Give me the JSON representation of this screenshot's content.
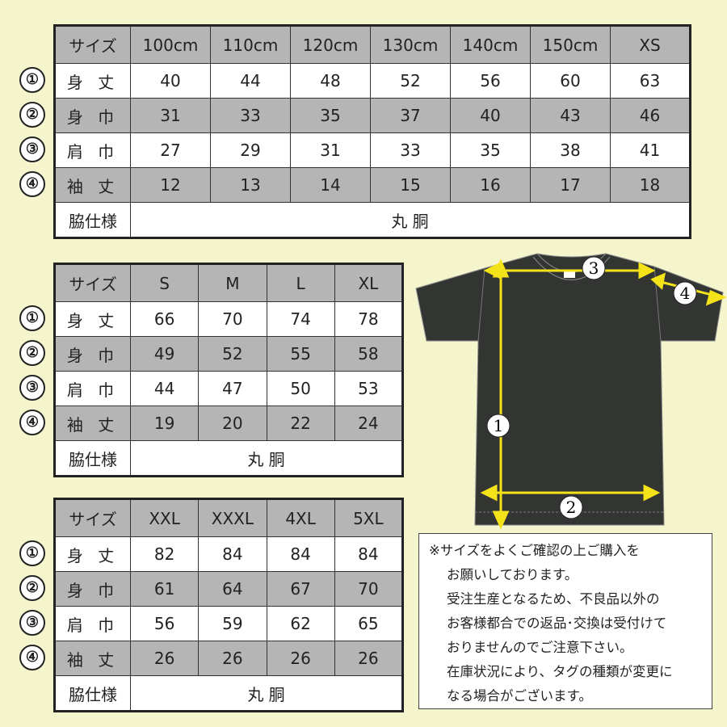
{
  "row_labels": {
    "size": "サイズ",
    "length": "身 丈",
    "width": "身 巾",
    "shoulder": "肩 巾",
    "sleeve": "袖 丈",
    "side": "脇仕様"
  },
  "markers": [
    "①",
    "②",
    "③",
    "④"
  ],
  "side_value": "丸 胴",
  "tables": [
    {
      "sizes": [
        "100cm",
        "110cm",
        "120cm",
        "130cm",
        "140cm",
        "150cm",
        "XS"
      ],
      "length": [
        "40",
        "44",
        "48",
        "52",
        "56",
        "60",
        "63"
      ],
      "width": [
        "31",
        "33",
        "35",
        "37",
        "40",
        "43",
        "46"
      ],
      "shoulder": [
        "27",
        "29",
        "31",
        "33",
        "35",
        "38",
        "41"
      ],
      "sleeve": [
        "12",
        "13",
        "14",
        "15",
        "16",
        "17",
        "18"
      ]
    },
    {
      "sizes": [
        "S",
        "M",
        "L",
        "XL"
      ],
      "length": [
        "66",
        "70",
        "74",
        "78"
      ],
      "width": [
        "49",
        "52",
        "55",
        "58"
      ],
      "shoulder": [
        "44",
        "47",
        "50",
        "53"
      ],
      "sleeve": [
        "19",
        "20",
        "22",
        "24"
      ]
    },
    {
      "sizes": [
        "XXL",
        "XXXL",
        "4XL",
        "5XL"
      ],
      "length": [
        "82",
        "84",
        "84",
        "84"
      ],
      "width": [
        "61",
        "64",
        "67",
        "70"
      ],
      "shoulder": [
        "56",
        "59",
        "62",
        "65"
      ],
      "sleeve": [
        "26",
        "26",
        "26",
        "26"
      ]
    }
  ],
  "diagram": {
    "labels": [
      "1",
      "2",
      "3",
      "4"
    ],
    "shirt_color": "#333533",
    "arrow_color": "#f5e31a"
  },
  "notes": [
    "※サイズをよくご確認の上ご購入を",
    "お願いしております。",
    "受注生産となるため、不良品以外の",
    "お客様都合での返品･交換は受付けて",
    "おりませんのでご注意下さい。",
    "在庫状況により、タグの種類が変更に",
    "なる場合がございます。"
  ],
  "colors": {
    "background": "#f5f5cd",
    "row_gray": "#b5b5b5"
  }
}
